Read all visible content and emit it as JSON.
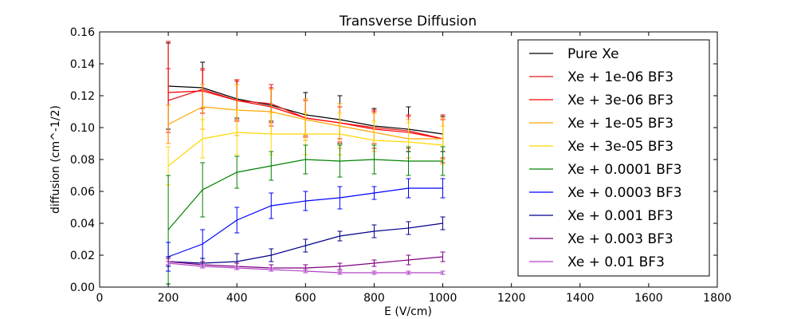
{
  "chart_data": {
    "type": "line",
    "title": "Transverse Diffusion",
    "xlabel": "E (V/cm)",
    "ylabel": "diffusion (cm^-1/2)",
    "xlim": [
      0,
      1800
    ],
    "ylim": [
      0.0,
      0.16
    ],
    "xticks": [
      0,
      200,
      400,
      600,
      800,
      1000,
      1200,
      1400,
      1600,
      1800
    ],
    "yticks": [
      0.0,
      0.02,
      0.04,
      0.06,
      0.08,
      0.1,
      0.12,
      0.14,
      0.16
    ],
    "xtick_labels": [
      "0",
      "200",
      "400",
      "600",
      "800",
      "1000",
      "1200",
      "1400",
      "1600",
      "1800"
    ],
    "ytick_labels": [
      "0.00",
      "0.02",
      "0.04",
      "0.06",
      "0.08",
      "0.10",
      "0.12",
      "0.14",
      "0.16"
    ],
    "grid": false,
    "legend_position": "top-right",
    "x": [
      200,
      300,
      400,
      500,
      600,
      700,
      800,
      900,
      1000
    ],
    "series": [
      {
        "name": "Pure Xe",
        "color": "#000000",
        "values": [
          0.126,
          0.125,
          0.118,
          0.114,
          0.108,
          0.105,
          0.101,
          0.099,
          0.096
        ],
        "errors": [
          0.027,
          0.016,
          0.012,
          0.01,
          0.014,
          0.015,
          0.011,
          0.014,
          0.011
        ]
      },
      {
        "name": "Xe + 1e-06 BF3",
        "color": "#e31a1c",
        "values": [
          0.117,
          0.124,
          0.117,
          0.115,
          0.106,
          0.103,
          0.1,
          0.098,
          0.093
        ],
        "errors": [
          0.02,
          0.012,
          0.012,
          0.012,
          0.011,
          0.012,
          0.01,
          0.01,
          0.015
        ]
      },
      {
        "name": "Xe + 3e-06 BF3",
        "color": "#ff0000",
        "values": [
          0.122,
          0.123,
          0.117,
          0.113,
          0.106,
          0.103,
          0.099,
          0.097,
          0.093
        ],
        "errors": [
          0.032,
          0.014,
          0.013,
          0.012,
          0.012,
          0.01,
          0.012,
          0.01,
          0.012
        ]
      },
      {
        "name": "Xe + 1e-05 BF3",
        "color": "#ffa500",
        "values": [
          0.102,
          0.113,
          0.111,
          0.11,
          0.105,
          0.101,
          0.097,
          0.093,
          0.093
        ],
        "errors": [
          0.012,
          0.014,
          0.016,
          0.014,
          0.013,
          0.014,
          0.012,
          0.012,
          0.013
        ]
      },
      {
        "name": "Xe + 3e-05 BF3",
        "color": "#ffd700",
        "values": [
          0.076,
          0.093,
          0.097,
          0.096,
          0.096,
          0.096,
          0.092,
          0.091,
          0.089
        ],
        "errors": [
          0.012,
          0.012,
          0.014,
          0.013,
          0.013,
          0.013,
          0.012,
          0.012,
          0.012
        ]
      },
      {
        "name": "Xe + 0.0001 BF3",
        "color": "#008000",
        "values": [
          0.036,
          0.061,
          0.072,
          0.076,
          0.08,
          0.079,
          0.08,
          0.079,
          0.079
        ],
        "errors": [
          0.034,
          0.017,
          0.01,
          0.009,
          0.009,
          0.01,
          0.009,
          0.009,
          0.009
        ]
      },
      {
        "name": "Xe + 0.0003 BF3",
        "color": "#0000ff",
        "values": [
          0.019,
          0.027,
          0.042,
          0.051,
          0.054,
          0.056,
          0.059,
          0.062,
          0.062
        ],
        "errors": [
          0.009,
          0.009,
          0.008,
          0.008,
          0.006,
          0.007,
          0.004,
          0.006,
          0.006
        ]
      },
      {
        "name": "Xe + 0.001 BF3",
        "color": "#00008b",
        "values": [
          0.016,
          0.015,
          0.016,
          0.02,
          0.026,
          0.032,
          0.035,
          0.037,
          0.04
        ],
        "errors": [
          0.003,
          0.003,
          0.005,
          0.004,
          0.004,
          0.003,
          0.004,
          0.004,
          0.004
        ]
      },
      {
        "name": "Xe + 0.003 BF3",
        "color": "#800080",
        "values": [
          0.016,
          0.014,
          0.013,
          0.012,
          0.012,
          0.013,
          0.015,
          0.017,
          0.019
        ],
        "errors": [
          0.002,
          0.002,
          0.002,
          0.002,
          0.002,
          0.002,
          0.002,
          0.003,
          0.003
        ]
      },
      {
        "name": "Xe + 0.01 BF3",
        "color": "#b044c8",
        "values": [
          0.015,
          0.013,
          0.012,
          0.011,
          0.01,
          0.009,
          0.009,
          0.009,
          0.009
        ],
        "errors": [
          0.001,
          0.001,
          0.001,
          0.001,
          0.001,
          0.001,
          0.001,
          0.001,
          0.001
        ]
      }
    ]
  }
}
